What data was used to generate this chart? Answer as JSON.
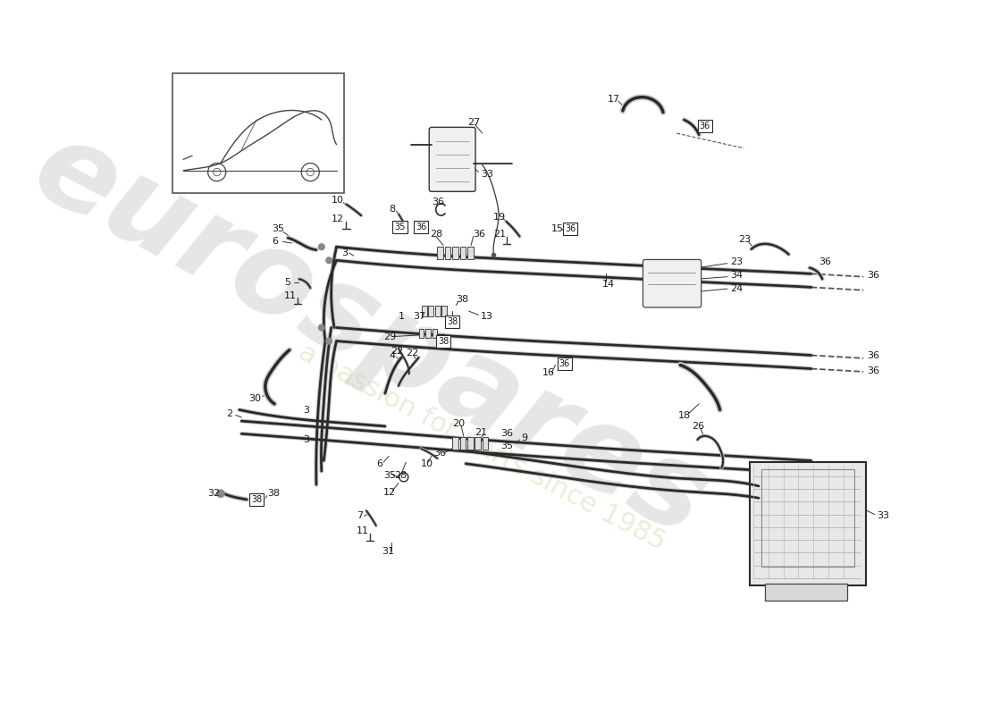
{
  "bg": "#ffffff",
  "lc": "#2a2a2a",
  "wm1": "eurospares",
  "wm2": "a passion for parts since 1985",
  "fig_w": 11.0,
  "fig_h": 8.0,
  "dpi": 100
}
